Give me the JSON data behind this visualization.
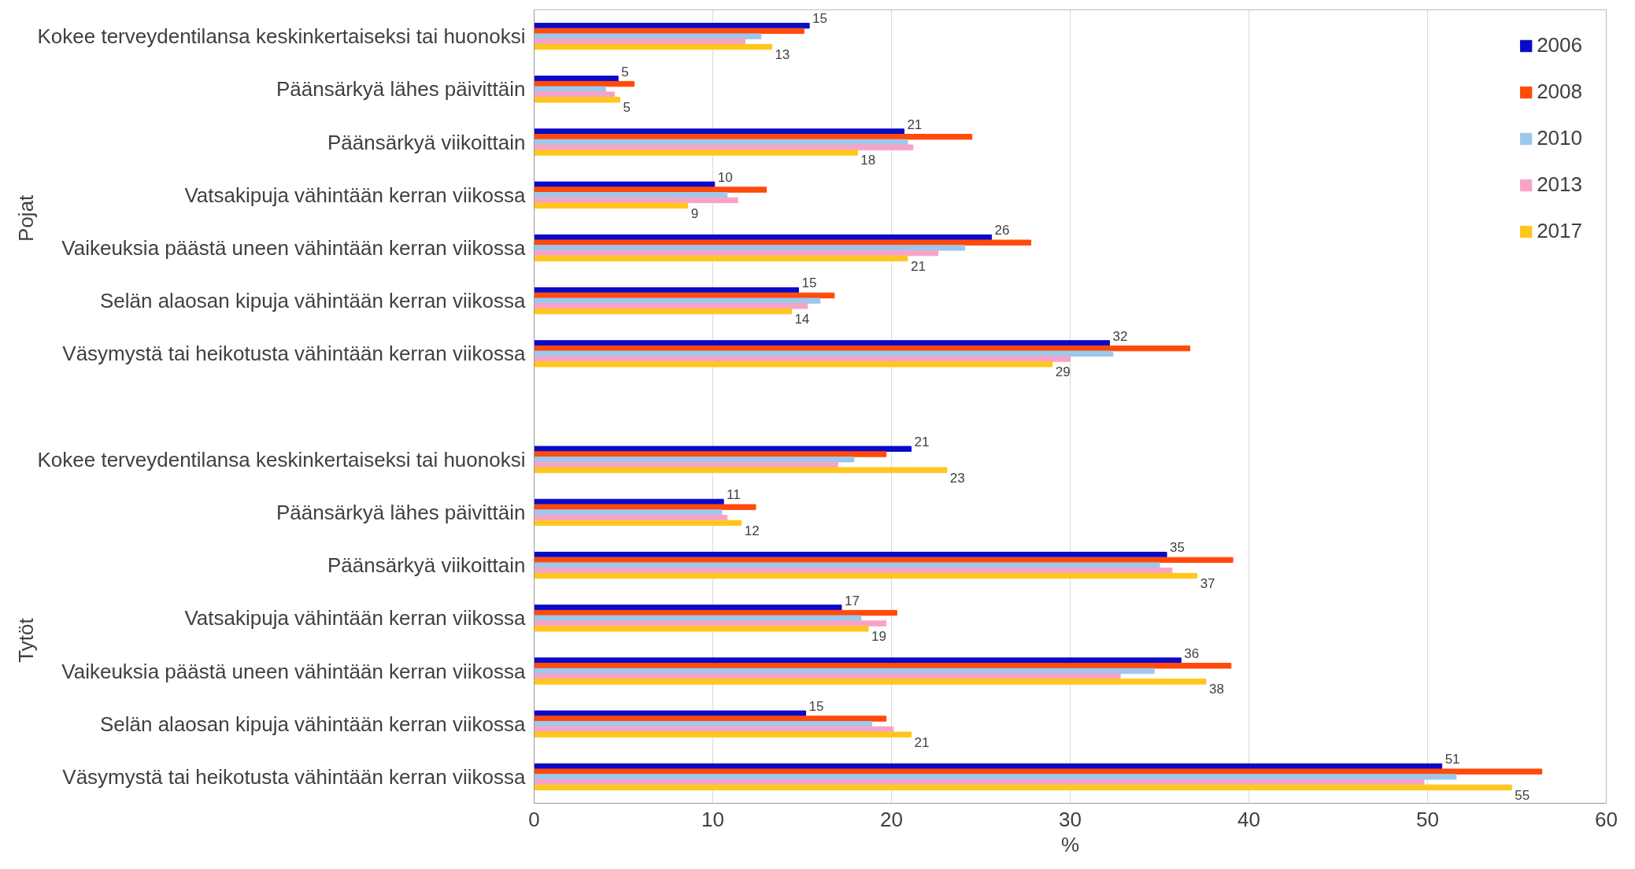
{
  "chart_data": {
    "type": "bar",
    "orientation": "horizontal",
    "categories": [
      "Kokee terveydentilansa keskinkertaiseksi tai huonoksi",
      "Päänsärkyä lähes päivittäin",
      "Päänsärkyä viikoittain",
      "Vatsakipuja vähintään kerran viikossa",
      "Vaikeuksia päästä uneen vähintään kerran viikossa",
      "Selän alaosan kipuja vähintään kerran viikossa",
      "Väsymystä tai heikotusta vähintään kerran viikossa",
      null,
      "Kokee terveydentilansa keskinkertaiseksi tai huonoksi",
      "Päänsärkyä lähes päivittäin",
      "Päänsärkyä viikoittain",
      "Vatsakipuja vähintään kerran viikossa",
      "Vaikeuksia päästä uneen vähintään kerran viikossa",
      "Selän alaosan kipuja vähintään kerran viikossa",
      "Väsymystä tai heikotusta vähintään kerran viikossa"
    ],
    "series": [
      {
        "name": "2006",
        "color": "#0a0ac8",
        "values": [
          15.4,
          4.7,
          20.7,
          10.1,
          25.6,
          14.8,
          32.2,
          null,
          21.1,
          10.6,
          35.4,
          17.2,
          36.2,
          15.2,
          50.8
        ],
        "value_labels": [
          "15",
          "5",
          "21",
          "10",
          "26",
          "15",
          "32",
          null,
          "21",
          "11",
          "35",
          "17",
          "36",
          "15",
          "51"
        ]
      },
      {
        "name": "2008",
        "color": "#ff4a0a",
        "values": [
          15.1,
          5.6,
          24.5,
          13.0,
          27.8,
          16.8,
          36.7,
          null,
          19.7,
          12.4,
          39.1,
          20.3,
          39.0,
          19.7,
          56.4
        ]
      },
      {
        "name": "2010",
        "color": "#9dc8ec",
        "values": [
          12.7,
          4.0,
          20.9,
          10.8,
          24.1,
          16.0,
          32.4,
          null,
          17.9,
          10.5,
          35.0,
          18.3,
          34.7,
          18.9,
          51.6
        ]
      },
      {
        "name": "2013",
        "color": "#f7a3c8",
        "values": [
          11.8,
          4.5,
          21.2,
          11.4,
          22.6,
          15.3,
          30.0,
          null,
          17.0,
          10.8,
          35.7,
          19.7,
          32.8,
          20.1,
          49.8
        ]
      },
      {
        "name": "2017",
        "color": "#ffc61e",
        "values": [
          13.3,
          4.8,
          18.1,
          8.6,
          20.9,
          14.4,
          29.0,
          null,
          23.1,
          11.6,
          37.1,
          18.7,
          37.6,
          21.1,
          54.7
        ],
        "value_labels": [
          "13",
          "5",
          "18",
          "9",
          "21",
          "14",
          "29",
          null,
          "23",
          "12",
          "37",
          "19",
          "38",
          "21",
          "55"
        ]
      }
    ],
    "annotations": [
      "Pojat",
      "Tytöt"
    ],
    "xlabel": "%",
    "xlim": [
      0,
      60
    ],
    "xticks": [
      0,
      10,
      20,
      30,
      40,
      50,
      60
    ],
    "grid": "x",
    "legend": "top right"
  }
}
